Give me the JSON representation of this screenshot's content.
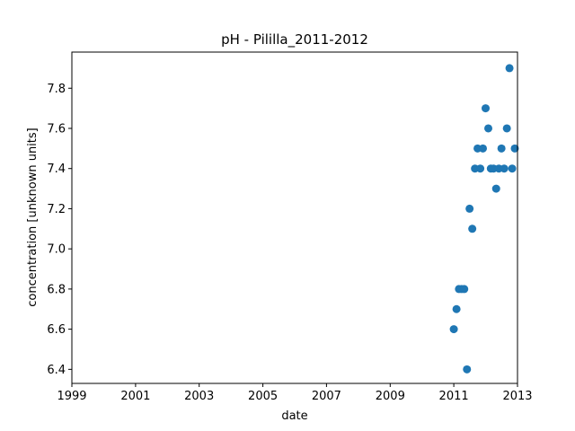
{
  "chart_data": {
    "type": "scatter",
    "title": "pH - Pililla_2011-2012",
    "xlabel": "date",
    "ylabel": "concentration [unknown units]",
    "x_ticks": [
      "1999",
      "2001",
      "2003",
      "2005",
      "2007",
      "2009",
      "2011",
      "2013"
    ],
    "y_ticks": [
      "6.4",
      "6.6",
      "6.8",
      "7.0",
      "7.2",
      "7.4",
      "7.6",
      "7.8"
    ],
    "xlim": [
      "1999-01-01",
      "2013-01-01"
    ],
    "ylim": [
      6.33,
      7.98
    ],
    "grid": false,
    "marker_color": "#1f77b4",
    "series": [
      {
        "x": [
          "2011-01-01",
          "2011-02-01",
          "2011-03-01",
          "2011-04-01",
          "2011-05-01",
          "2011-06-01",
          "2011-07-01",
          "2011-08-01",
          "2011-09-01",
          "2011-10-01",
          "2011-11-01",
          "2011-12-01",
          "2012-01-01",
          "2012-02-01",
          "2012-03-01",
          "2012-04-01",
          "2012-05-01",
          "2012-06-01",
          "2012-07-01",
          "2012-08-01",
          "2012-09-01",
          "2012-10-01",
          "2012-11-01",
          "2012-12-01"
        ],
        "y": [
          6.6,
          6.7,
          6.8,
          6.8,
          6.8,
          6.4,
          7.2,
          7.1,
          7.4,
          7.5,
          7.4,
          7.5,
          7.7,
          7.6,
          7.4,
          7.4,
          7.3,
          7.4,
          7.5,
          7.4,
          7.6,
          7.9,
          7.4,
          7.5
        ]
      }
    ]
  }
}
